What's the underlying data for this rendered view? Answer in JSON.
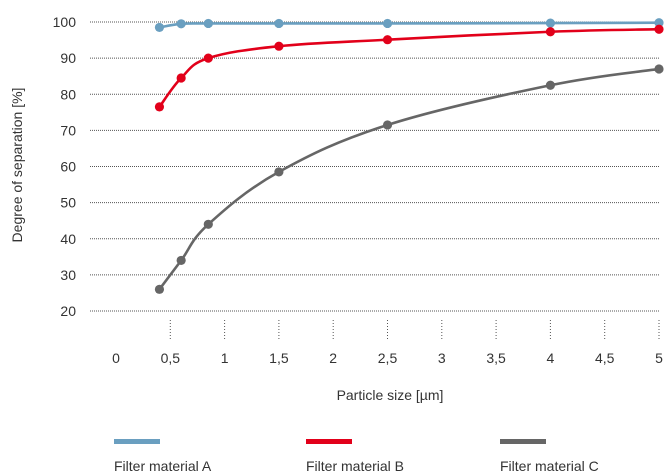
{
  "chart_data": {
    "type": "line",
    "xlabel": "Particle size [µm]",
    "ylabel": "Degree of separation [%]",
    "xlim": [
      0,
      5
    ],
    "ylim": [
      20,
      100
    ],
    "x_ticks": [
      0,
      0.5,
      1,
      1.5,
      2,
      2.5,
      3,
      3.5,
      4,
      4.5,
      5
    ],
    "x_tick_labels": [
      "0",
      "0,5",
      "1",
      "1,5",
      "2",
      "2,5",
      "3",
      "3,5",
      "4",
      "4,5",
      "5"
    ],
    "y_ticks": [
      20,
      30,
      40,
      50,
      60,
      70,
      80,
      90,
      100
    ],
    "y_tick_labels": [
      "20",
      "30",
      "40",
      "50",
      "60",
      "70",
      "80",
      "90",
      "100"
    ],
    "grid": true,
    "legend_position": "bottom",
    "series": [
      {
        "name": "Filter material A",
        "color": "#6a9fc0",
        "x": [
          0.4,
          0.6,
          0.85,
          1.5,
          2.5,
          4,
          5
        ],
        "y": [
          98.5,
          99.5,
          99.6,
          99.6,
          99.6,
          99.7,
          99.8
        ]
      },
      {
        "name": "Filter material B",
        "color": "#e2001a",
        "x": [
          0.4,
          0.6,
          0.85,
          1.5,
          2.5,
          4,
          5
        ],
        "y": [
          76.5,
          84.5,
          90,
          93.3,
          95.1,
          97.3,
          98
        ]
      },
      {
        "name": "Filter material C",
        "color": "#666666",
        "x": [
          0.4,
          0.6,
          0.85,
          1.5,
          2.5,
          4,
          5
        ],
        "y": [
          26,
          34,
          44,
          58.5,
          71.5,
          82.5,
          87
        ]
      }
    ]
  }
}
